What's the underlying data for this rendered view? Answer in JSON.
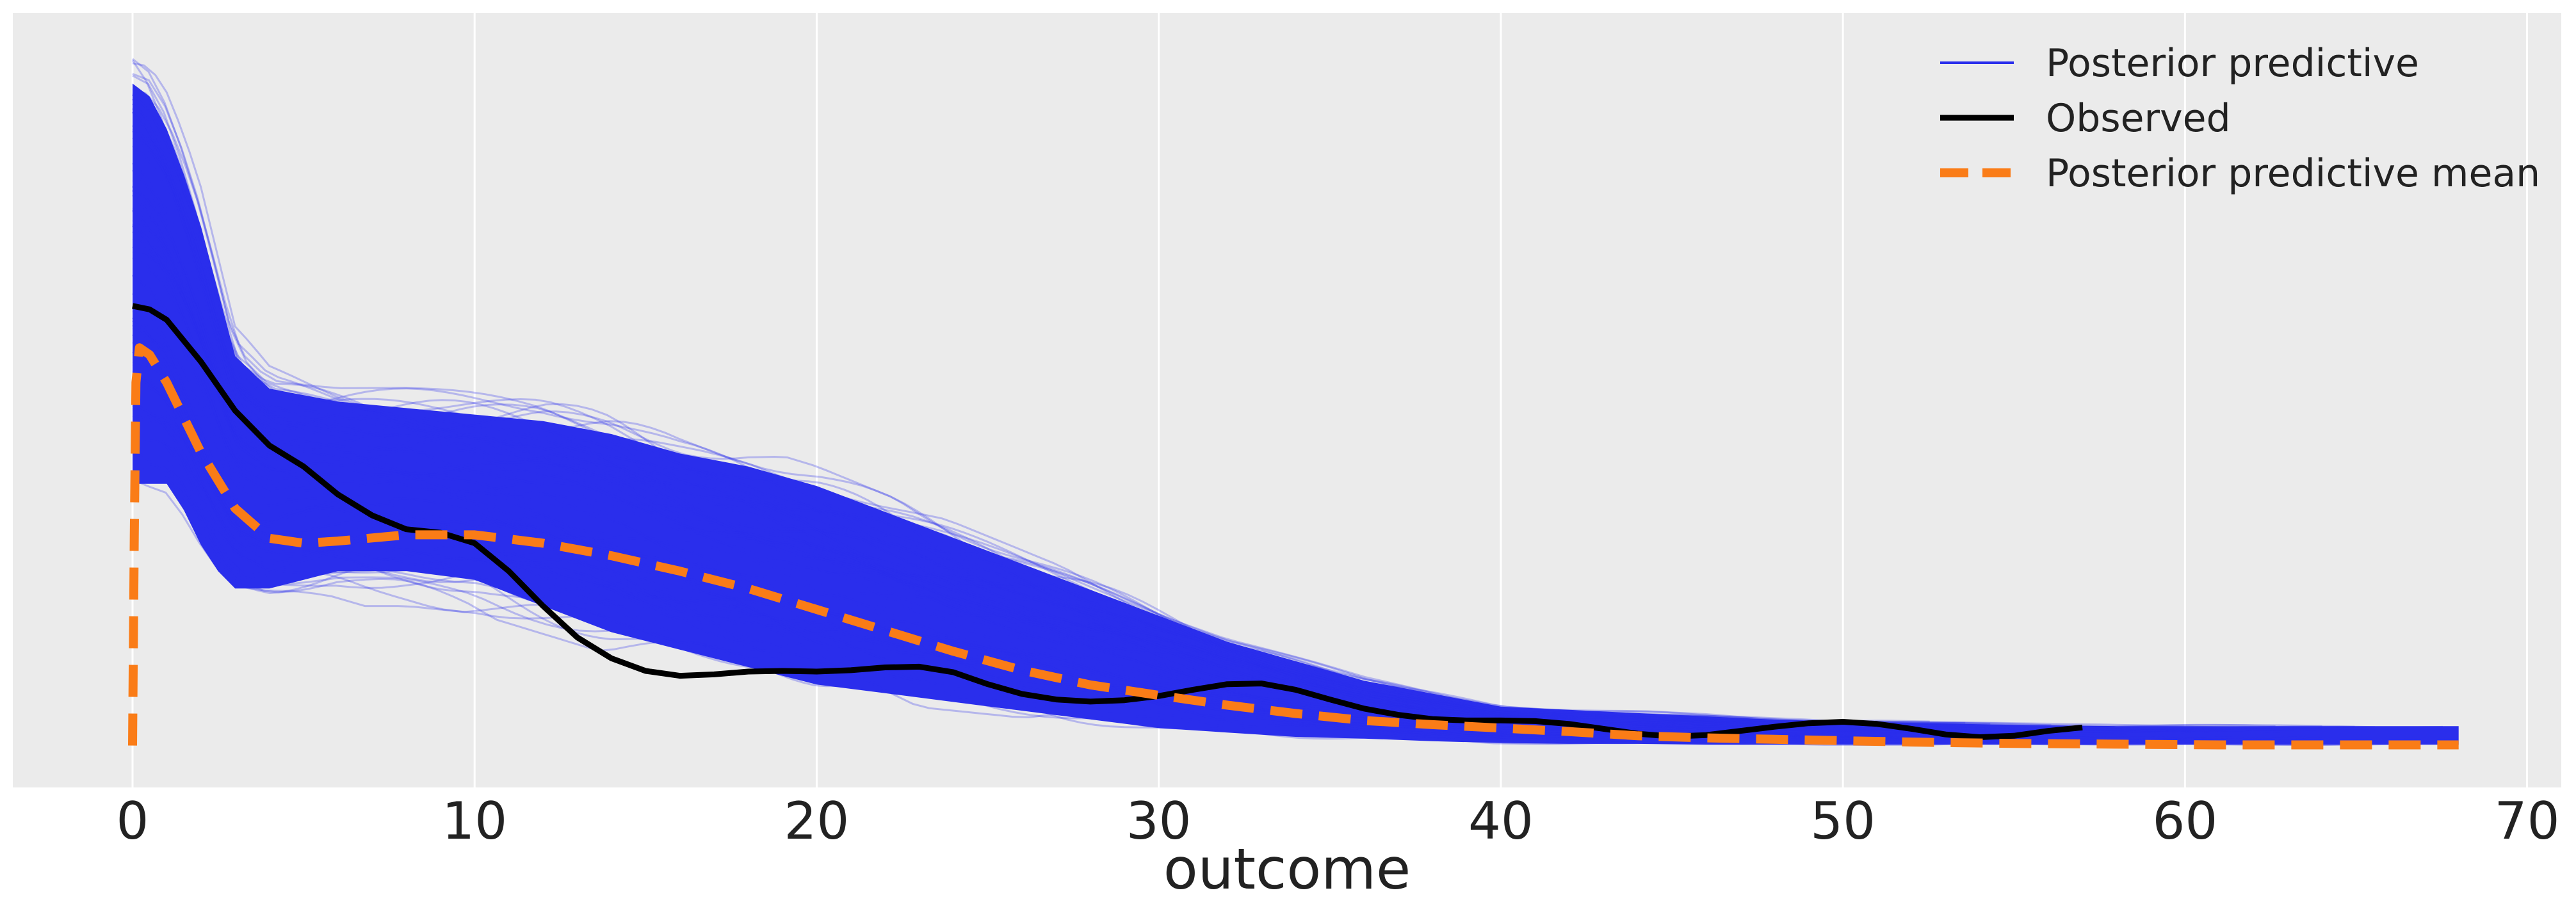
{
  "chart_data": {
    "type": "line",
    "title": "",
    "xlabel": "outcome",
    "ylabel": "",
    "xlim": [
      -3.5,
      71
    ],
    "ylim": [
      -0.006,
      0.105
    ],
    "xticks": [
      0,
      10,
      20,
      30,
      40,
      50,
      60,
      70
    ],
    "grid": "vertical",
    "legend_position": "top-right",
    "colors": {
      "background": "#ebebeb",
      "grid": "#ffffff",
      "posterior_predictive": "#2a2eec",
      "observed": "#000000",
      "mean": "#fa7c17"
    },
    "series": [
      {
        "name": "Posterior predictive",
        "style": "thin-band",
        "x": [
          0,
          0.5,
          1,
          1.5,
          2,
          2.5,
          3,
          4,
          5,
          6,
          8,
          10,
          12,
          14,
          16,
          18,
          20,
          22,
          24,
          26,
          28,
          30,
          32,
          34,
          36,
          38,
          40,
          42,
          44,
          46,
          48,
          50,
          52,
          55,
          58,
          61,
          64,
          68
        ],
        "upper": [
          0.102,
          0.1,
          0.095,
          0.088,
          0.08,
          0.07,
          0.06,
          0.055,
          0.054,
          0.053,
          0.052,
          0.051,
          0.05,
          0.048,
          0.045,
          0.043,
          0.04,
          0.036,
          0.032,
          0.028,
          0.024,
          0.02,
          0.016,
          0.013,
          0.01,
          0.008,
          0.006,
          0.0055,
          0.005,
          0.0045,
          0.004,
          0.0037,
          0.0035,
          0.0032,
          0.003,
          0.003,
          0.003,
          0.003
        ],
        "lower": [
          0.03,
          0.03,
          0.03,
          0.027,
          0.023,
          0.02,
          0.018,
          0.018,
          0.019,
          0.02,
          0.02,
          0.019,
          0.016,
          0.013,
          0.011,
          0.009,
          0.007,
          0.006,
          0.005,
          0.004,
          0.003,
          0.002,
          0.0015,
          0.001,
          0.0008,
          0.0005,
          0.0003,
          0.0002,
          0.0002,
          0.0001,
          0.0001,
          0.0001,
          0.0001,
          0.0001,
          0.0001,
          0.0001,
          0.0001,
          0.0001
        ]
      },
      {
        "name": "Observed",
        "x": [
          0,
          0.5,
          1,
          1.5,
          2,
          3,
          4,
          5,
          6,
          7,
          8,
          9,
          10,
          11,
          12,
          13,
          14,
          15,
          16,
          17,
          18,
          19,
          20,
          21,
          22,
          23,
          24,
          25,
          26,
          27,
          28,
          29,
          30,
          31,
          32,
          33,
          34,
          35,
          36,
          37,
          38,
          39,
          40,
          41,
          42,
          43,
          44,
          45,
          46,
          47,
          48,
          49,
          50,
          51,
          52,
          53,
          54,
          55,
          56,
          57
        ],
        "values": [
          0.063,
          0.0625,
          0.061,
          0.058,
          0.055,
          0.048,
          0.043,
          0.04,
          0.036,
          0.033,
          0.031,
          0.0305,
          0.029,
          0.025,
          0.02,
          0.0155,
          0.0125,
          0.0107,
          0.01,
          0.0102,
          0.0106,
          0.0107,
          0.0106,
          0.0108,
          0.0112,
          0.0113,
          0.0105,
          0.0088,
          0.0074,
          0.0066,
          0.0063,
          0.0065,
          0.0071,
          0.008,
          0.0088,
          0.0089,
          0.008,
          0.0066,
          0.0053,
          0.0044,
          0.0038,
          0.0036,
          0.0036,
          0.0035,
          0.0031,
          0.0024,
          0.0017,
          0.0013,
          0.0015,
          0.0021,
          0.0027,
          0.0032,
          0.0034,
          0.0031,
          0.0024,
          0.0016,
          0.0012,
          0.0014,
          0.0021,
          0.0026
        ]
      },
      {
        "name": "Posterior predictive mean",
        "style": "dashed",
        "x": [
          0,
          0.05,
          0.1,
          0.2,
          0.5,
          1,
          1.5,
          2,
          3,
          4,
          5,
          6,
          8,
          10,
          12,
          14,
          16,
          18,
          20,
          22,
          24,
          26,
          28,
          30,
          32,
          34,
          36,
          38,
          40,
          42,
          44,
          46,
          48,
          50,
          52,
          55,
          58,
          61,
          64,
          68
        ],
        "values": [
          0.0,
          0.03,
          0.052,
          0.057,
          0.056,
          0.052,
          0.047,
          0.042,
          0.034,
          0.0297,
          0.029,
          0.0293,
          0.0302,
          0.0302,
          0.029,
          0.0272,
          0.025,
          0.0225,
          0.0195,
          0.0165,
          0.0135,
          0.0108,
          0.0087,
          0.0072,
          0.0058,
          0.0046,
          0.0036,
          0.003,
          0.0025,
          0.002,
          0.0014,
          0.0011,
          0.0009,
          0.0007,
          0.0005,
          0.0003,
          0.0002,
          0.0001,
          0.0001,
          0.0001
        ]
      }
    ]
  }
}
